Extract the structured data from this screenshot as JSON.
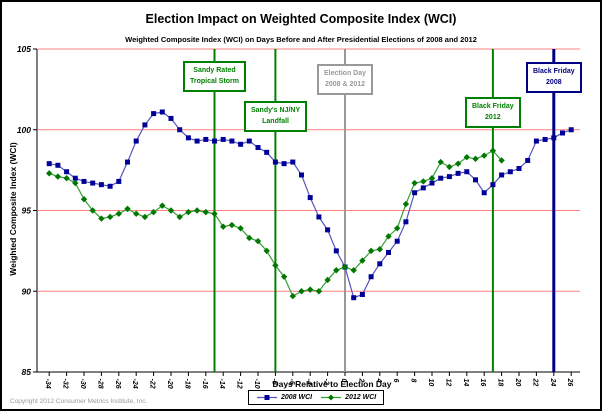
{
  "chart_data": {
    "type": "line",
    "title": "Election Impact on Weighted Composite Index (WCI)",
    "subtitle": "Weighted Composite Index (WCI) on Days Before and After Presidential Elections of 2008 and 2012",
    "xlabel": "Days Relative to Election Day",
    "ylabel": "Weighted Composite Index (WCI)",
    "xlim": [
      -35,
      27
    ],
    "ylim": [
      85,
      105
    ],
    "x_ticks": [
      -34,
      -32,
      -30,
      -28,
      -26,
      -24,
      -22,
      -20,
      -18,
      -16,
      -14,
      -12,
      -10,
      -8,
      -6,
      -4,
      -2,
      0,
      2,
      4,
      6,
      8,
      10,
      12,
      14,
      16,
      18,
      20,
      22,
      24,
      26
    ],
    "y_ticks": [
      105,
      100,
      95,
      90,
      85
    ],
    "y_gridlines": [
      105,
      100,
      95,
      90
    ],
    "gridline_color": "#FF8080",
    "axis_color": "#000000",
    "legend_position": "bottom",
    "grid": "horizontal-only",
    "series": [
      {
        "name": "2008 WCI",
        "color": "#000099",
        "line_color": "#5555BB",
        "marker": "square",
        "x": [
          -34,
          -33,
          -32,
          -31,
          -30,
          -29,
          -28,
          -27,
          -26,
          -25,
          -24,
          -23,
          -22,
          -21,
          -20,
          -19,
          -18,
          -17,
          -16,
          -15,
          -14,
          -13,
          -12,
          -11,
          -10,
          -9,
          -8,
          -7,
          -6,
          -5,
          -4,
          -3,
          -2,
          -1,
          0,
          1,
          2,
          3,
          4,
          5,
          6,
          7,
          8,
          9,
          10,
          11,
          12,
          13,
          14,
          15,
          16,
          17,
          18,
          19,
          20,
          21,
          22,
          23,
          24,
          25,
          26
        ],
        "values": [
          97.9,
          97.8,
          97.4,
          97.0,
          96.8,
          96.7,
          96.6,
          96.5,
          96.8,
          98.0,
          99.3,
          100.3,
          101.0,
          101.1,
          100.7,
          100.0,
          99.5,
          99.3,
          99.4,
          99.3,
          99.4,
          99.3,
          99.1,
          99.3,
          98.9,
          98.6,
          98.0,
          97.9,
          98.0,
          97.2,
          95.8,
          94.6,
          93.8,
          92.5,
          91.5,
          89.6,
          89.8,
          90.9,
          91.7,
          92.4,
          93.1,
          94.3,
          96.1,
          96.4,
          96.7,
          97.0,
          97.1,
          97.3,
          97.4,
          96.9,
          96.1,
          96.6,
          97.2,
          97.4,
          97.6,
          98.1,
          99.3,
          99.4,
          99.5,
          99.8,
          100.0
        ]
      },
      {
        "name": "2012 WCI",
        "color": "#007700",
        "line_color": "#33A033",
        "marker": "diamond",
        "x": [
          -34,
          -33,
          -32,
          -31,
          -30,
          -29,
          -28,
          -27,
          -26,
          -25,
          -24,
          -23,
          -22,
          -21,
          -20,
          -19,
          -18,
          -17,
          -16,
          -15,
          -14,
          -13,
          -12,
          -11,
          -10,
          -9,
          -8,
          -7,
          -6,
          -5,
          -4,
          -3,
          -2,
          -1,
          0,
          1,
          2,
          3,
          4,
          5,
          6,
          7,
          8,
          9,
          10,
          11,
          12,
          13,
          14,
          15,
          16,
          17,
          18
        ],
        "values": [
          97.3,
          97.1,
          97.0,
          96.7,
          95.7,
          95.0,
          94.5,
          94.6,
          94.8,
          95.1,
          94.8,
          94.6,
          94.9,
          95.3,
          95.0,
          94.6,
          94.9,
          95.0,
          94.9,
          94.8,
          94.0,
          94.1,
          93.9,
          93.3,
          93.1,
          92.5,
          91.6,
          90.9,
          89.7,
          90.0,
          90.1,
          90.0,
          90.7,
          91.3,
          91.5,
          91.3,
          91.9,
          92.5,
          92.6,
          93.4,
          93.9,
          95.4,
          96.7,
          96.8,
          97.0,
          98.0,
          97.7,
          97.9,
          98.3,
          98.2,
          98.4,
          98.7,
          98.1
        ]
      }
    ],
    "annotations": [
      {
        "label": "Sandy Rated\nTropical Storm",
        "day": -15,
        "color": "#008000"
      },
      {
        "label": "Sandy's NJ/NY\nLandfall",
        "day": -8,
        "color": "#008000"
      },
      {
        "label": "Election Day\n2008 & 2012",
        "day": 0,
        "color": "#999999"
      },
      {
        "label": "Black Friday\n2012",
        "day": 17,
        "color": "#008000"
      },
      {
        "label": "Black Friday\n2008",
        "day": 24,
        "color": "#000080"
      }
    ]
  },
  "footer": {
    "copyright": "Copyright 2012 Consumer Metrics Institute, Inc."
  }
}
